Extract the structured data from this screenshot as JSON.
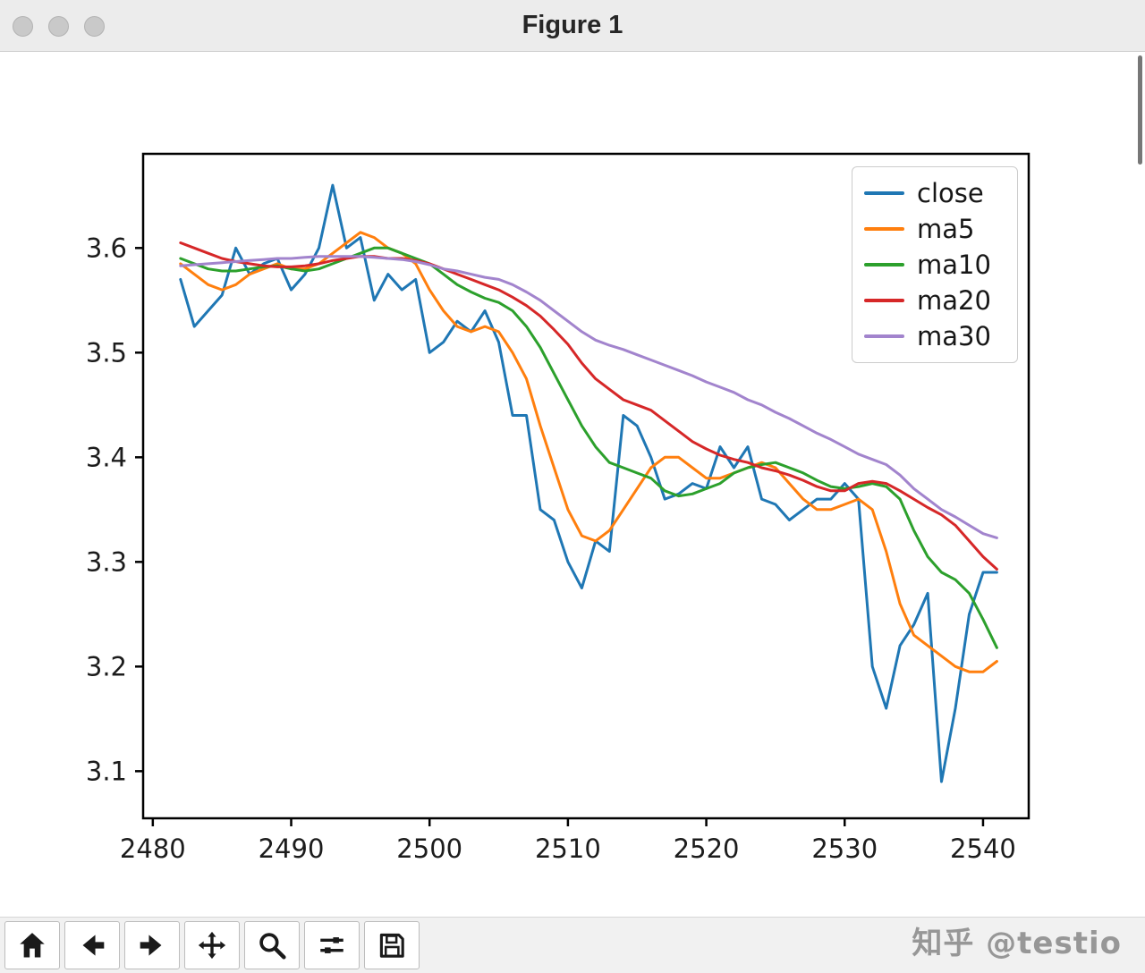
{
  "window": {
    "title": "Figure 1"
  },
  "watermark": {
    "text": "知乎 @testio"
  },
  "toolbar": {
    "buttons": [
      {
        "name": "home",
        "icon": "home-icon"
      },
      {
        "name": "back",
        "icon": "back-arrow-icon"
      },
      {
        "name": "forward",
        "icon": "forward-arrow-icon"
      },
      {
        "name": "pan",
        "icon": "pan-move-icon"
      },
      {
        "name": "zoom",
        "icon": "magnifier-icon"
      },
      {
        "name": "configure-subplots",
        "icon": "sliders-icon"
      },
      {
        "name": "save",
        "icon": "floppy-disk-icon"
      }
    ]
  },
  "chart_data": {
    "type": "line",
    "title": "",
    "xlabel": "",
    "ylabel": "",
    "grid": false,
    "legend_position": "upper right",
    "xlim": [
      2479.3,
      2543.3
    ],
    "ylim": [
      3.055,
      3.69
    ],
    "xticks": [
      2480,
      2490,
      2500,
      2510,
      2520,
      2530,
      2540
    ],
    "yticks": [
      3.1,
      3.2,
      3.3,
      3.4,
      3.5,
      3.6
    ],
    "x": [
      2482,
      2483,
      2484,
      2485,
      2486,
      2487,
      2488,
      2489,
      2490,
      2491,
      2492,
      2493,
      2494,
      2495,
      2496,
      2497,
      2498,
      2499,
      2500,
      2501,
      2502,
      2503,
      2504,
      2505,
      2506,
      2507,
      2508,
      2509,
      2510,
      2511,
      2512,
      2513,
      2514,
      2515,
      2516,
      2517,
      2518,
      2519,
      2520,
      2521,
      2522,
      2523,
      2524,
      2525,
      2526,
      2527,
      2528,
      2529,
      2530,
      2531,
      2532,
      2533,
      2534,
      2535,
      2536,
      2537,
      2538,
      2539,
      2540,
      2541
    ],
    "series": [
      {
        "name": "close",
        "color": "#1f77b4",
        "values": [
          3.57,
          3.525,
          3.54,
          3.555,
          3.6,
          3.575,
          3.585,
          3.59,
          3.56,
          3.575,
          3.6,
          3.66,
          3.6,
          3.61,
          3.55,
          3.575,
          3.56,
          3.57,
          3.5,
          3.51,
          3.53,
          3.52,
          3.54,
          3.51,
          3.44,
          3.44,
          3.35,
          3.34,
          3.3,
          3.275,
          3.32,
          3.31,
          3.44,
          3.43,
          3.4,
          3.36,
          3.365,
          3.375,
          3.37,
          3.41,
          3.39,
          3.41,
          3.36,
          3.355,
          3.34,
          3.35,
          3.36,
          3.36,
          3.375,
          3.36,
          3.2,
          3.16,
          3.22,
          3.24,
          3.27,
          3.09,
          3.16,
          3.25,
          3.29,
          3.29
        ]
      },
      {
        "name": "ma5",
        "color": "#ff7f0e",
        "values": [
          3.585,
          3.575,
          3.565,
          3.56,
          3.565,
          3.575,
          3.58,
          3.585,
          3.58,
          3.58,
          3.585,
          3.595,
          3.605,
          3.615,
          3.61,
          3.6,
          3.595,
          3.585,
          3.56,
          3.54,
          3.525,
          3.52,
          3.525,
          3.52,
          3.5,
          3.475,
          3.43,
          3.39,
          3.35,
          3.325,
          3.32,
          3.33,
          3.35,
          3.37,
          3.39,
          3.4,
          3.4,
          3.39,
          3.38,
          3.38,
          3.385,
          3.39,
          3.395,
          3.39,
          3.375,
          3.36,
          3.35,
          3.35,
          3.355,
          3.36,
          3.35,
          3.31,
          3.26,
          3.23,
          3.22,
          3.21,
          3.2,
          3.195,
          3.195,
          3.205
        ]
      },
      {
        "name": "ma10",
        "color": "#2ca02c",
        "values": [
          3.59,
          3.585,
          3.58,
          3.578,
          3.578,
          3.58,
          3.582,
          3.583,
          3.58,
          3.578,
          3.58,
          3.585,
          3.59,
          3.595,
          3.6,
          3.6,
          3.595,
          3.59,
          3.585,
          3.575,
          3.565,
          3.558,
          3.552,
          3.548,
          3.54,
          3.525,
          3.505,
          3.48,
          3.455,
          3.43,
          3.41,
          3.395,
          3.39,
          3.385,
          3.38,
          3.368,
          3.363,
          3.365,
          3.37,
          3.375,
          3.385,
          3.39,
          3.393,
          3.395,
          3.39,
          3.385,
          3.378,
          3.372,
          3.37,
          3.372,
          3.375,
          3.372,
          3.36,
          3.33,
          3.305,
          3.29,
          3.283,
          3.27,
          3.245,
          3.218
        ]
      },
      {
        "name": "ma20",
        "color": "#d62728",
        "values": [
          3.605,
          3.6,
          3.595,
          3.59,
          3.587,
          3.585,
          3.583,
          3.582,
          3.582,
          3.583,
          3.585,
          3.588,
          3.59,
          3.592,
          3.592,
          3.59,
          3.59,
          3.588,
          3.585,
          3.58,
          3.575,
          3.57,
          3.565,
          3.56,
          3.553,
          3.545,
          3.535,
          3.522,
          3.508,
          3.49,
          3.475,
          3.465,
          3.455,
          3.45,
          3.445,
          3.435,
          3.425,
          3.415,
          3.408,
          3.402,
          3.398,
          3.395,
          3.39,
          3.387,
          3.383,
          3.378,
          3.372,
          3.368,
          3.368,
          3.375,
          3.377,
          3.375,
          3.368,
          3.36,
          3.352,
          3.345,
          3.335,
          3.32,
          3.305,
          3.293
        ]
      },
      {
        "name": "ma30",
        "color": "#a284cd",
        "values": [
          3.583,
          3.584,
          3.585,
          3.586,
          3.587,
          3.588,
          3.589,
          3.59,
          3.59,
          3.591,
          3.592,
          3.592,
          3.592,
          3.592,
          3.591,
          3.59,
          3.589,
          3.587,
          3.584,
          3.58,
          3.578,
          3.575,
          3.572,
          3.57,
          3.565,
          3.558,
          3.55,
          3.54,
          3.53,
          3.52,
          3.512,
          3.507,
          3.503,
          3.498,
          3.493,
          3.488,
          3.483,
          3.478,
          3.472,
          3.467,
          3.462,
          3.455,
          3.45,
          3.443,
          3.437,
          3.43,
          3.423,
          3.417,
          3.41,
          3.403,
          3.398,
          3.393,
          3.383,
          3.37,
          3.36,
          3.35,
          3.343,
          3.335,
          3.327,
          3.323
        ]
      }
    ]
  }
}
